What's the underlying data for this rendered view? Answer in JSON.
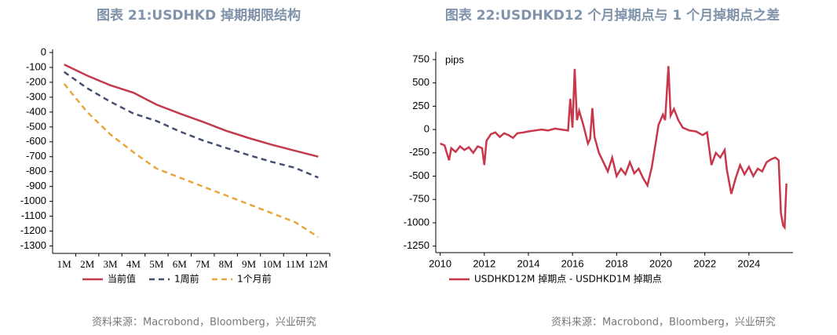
{
  "chart_data": [
    {
      "type": "line",
      "title": "图表 21:USDHKD 掉期期限结构",
      "categories": [
        "1M",
        "2M",
        "3M",
        "4M",
        "5M",
        "6M",
        "7M",
        "8M",
        "9M",
        "10M",
        "11M",
        "12M"
      ],
      "series": [
        {
          "name": "当前值",
          "color": "#c23b4c",
          "dash": "solid",
          "values": [
            -80,
            -155,
            -220,
            -270,
            -350,
            -410,
            -465,
            -525,
            -575,
            -620,
            -660,
            -700
          ]
        },
        {
          "name": "1周前",
          "color": "#44506e",
          "dash": "dashed",
          "values": [
            -130,
            -240,
            -330,
            -410,
            -460,
            -530,
            -590,
            -640,
            -690,
            -735,
            -775,
            -840
          ]
        },
        {
          "name": "1个月前",
          "color": "#e8a73a",
          "dash": "dashed",
          "values": [
            -210,
            -400,
            -550,
            -670,
            -780,
            -840,
            -900,
            -960,
            -1020,
            -1080,
            -1140,
            -1240
          ]
        }
      ],
      "ylim": [
        -1350,
        0
      ],
      "yticks": [
        0,
        -100,
        -200,
        -300,
        -400,
        -500,
        -600,
        -700,
        -800,
        -900,
        -1000,
        -1100,
        -1200,
        -1300
      ],
      "source": "资料来源：Macrobond，Bloomberg，兴业研究"
    },
    {
      "type": "line",
      "title": "图表 22:USDHKD12 个月掉期点与 1 个月掉期点之差",
      "annotation": "pips",
      "x": [
        2010.0,
        2010.2,
        2010.4,
        2010.5,
        2010.7,
        2010.9,
        2011.1,
        2011.3,
        2011.5,
        2011.7,
        2011.9,
        2012.0,
        2012.1,
        2012.3,
        2012.5,
        2012.7,
        2012.9,
        2013.1,
        2013.3,
        2013.5,
        2013.8,
        2014.0,
        2014.3,
        2014.6,
        2014.9,
        2015.2,
        2015.5,
        2015.8,
        2015.9,
        2016.0,
        2016.1,
        2016.2,
        2016.3,
        2016.5,
        2016.7,
        2016.8,
        2016.9,
        2017.0,
        2017.2,
        2017.4,
        2017.6,
        2017.8,
        2018.0,
        2018.2,
        2018.4,
        2018.6,
        2018.8,
        2019.0,
        2019.2,
        2019.4,
        2019.6,
        2019.8,
        2019.9,
        2020.1,
        2020.2,
        2020.35,
        2020.45,
        2020.6,
        2020.8,
        2021.0,
        2021.3,
        2021.6,
        2021.9,
        2022.1,
        2022.3,
        2022.5,
        2022.7,
        2022.9,
        2023.0,
        2023.2,
        2023.4,
        2023.6,
        2023.8,
        2024.0,
        2024.2,
        2024.4,
        2024.6,
        2024.8,
        2025.0,
        2025.2,
        2025.35,
        2025.45,
        2025.55,
        2025.62,
        2025.7
      ],
      "series": [
        {
          "name": "USDHKD12M 掉期点 - USDHKD1M 掉期点",
          "color": "#c8374a",
          "dash": "solid",
          "values": [
            -150,
            -170,
            -330,
            -200,
            -240,
            -180,
            -220,
            -190,
            -250,
            -180,
            -200,
            -380,
            -120,
            -50,
            -30,
            -80,
            -40,
            -60,
            -90,
            -40,
            -30,
            -20,
            -10,
            0,
            -10,
            10,
            0,
            -10,
            330,
            20,
            650,
            100,
            200,
            40,
            -150,
            -100,
            230,
            -80,
            -250,
            -350,
            -450,
            -300,
            -500,
            -420,
            -480,
            -350,
            -470,
            -420,
            -520,
            -600,
            -400,
            -100,
            50,
            160,
            100,
            680,
            150,
            220,
            100,
            20,
            -10,
            -20,
            -60,
            -30,
            -380,
            -250,
            -300,
            -220,
            -430,
            -690,
            -520,
            -380,
            -480,
            -400,
            -500,
            -420,
            -450,
            -350,
            -320,
            -300,
            -330,
            -900,
            -1030,
            -1050,
            -580
          ]
        }
      ],
      "xlim": [
        2009.8,
        2026.0
      ],
      "xticks": [
        2010,
        2012,
        2014,
        2016,
        2018,
        2020,
        2022,
        2024
      ],
      "ylim": [
        -1320,
        800
      ],
      "yticks": [
        750,
        500,
        250,
        0,
        -250,
        -500,
        -750,
        -1000,
        -1250
      ],
      "source": "资料来源：Macrobond，Bloomberg，兴业研究"
    }
  ]
}
